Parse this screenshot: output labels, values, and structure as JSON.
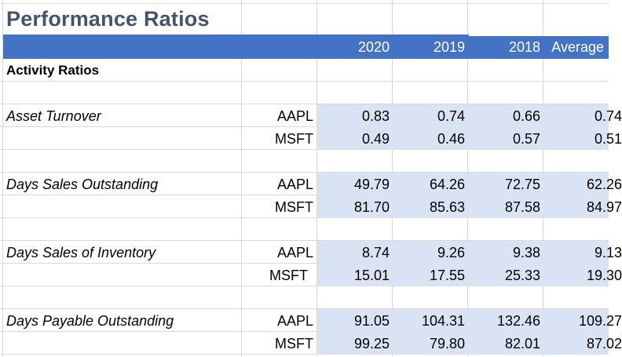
{
  "sheet": {
    "title": "Performance Ratios",
    "header": {
      "years": [
        "2020",
        "2019",
        "2018"
      ],
      "average_label": "Average"
    },
    "section_title": "Activity Ratios",
    "metrics": [
      {
        "label": "Asset Turnover",
        "rows": [
          {
            "ticker": "AAPL",
            "v2020": "0.83",
            "v2019": "0.74",
            "v2018": "0.66",
            "avg": "0.74"
          },
          {
            "ticker": "MSFT",
            "v2020": "0.49",
            "v2019": "0.46",
            "v2018": "0.57",
            "avg": "0.51"
          }
        ]
      },
      {
        "label": "Days Sales Outstanding",
        "rows": [
          {
            "ticker": "AAPL",
            "v2020": "49.79",
            "v2019": "64.26",
            "v2018": "72.75",
            "avg": "62.26"
          },
          {
            "ticker": "MSFT",
            "v2020": "81.70",
            "v2019": "85.63",
            "v2018": "87.58",
            "avg": "84.97"
          }
        ]
      },
      {
        "label": "Days Sales of Inventory",
        "rows": [
          {
            "ticker": "AAPL",
            "v2020": "8.74",
            "v2019": "9.26",
            "v2018": "9.38",
            "avg": "9.13"
          },
          {
            "ticker": "MSFT",
            "v2020": "15.01",
            "v2019": "17.55",
            "v2018": "25.33",
            "avg": "19.30"
          }
        ]
      },
      {
        "label": "Days Payable Outstanding",
        "rows": [
          {
            "ticker": "AAPL",
            "v2020": "91.05",
            "v2019": "104.31",
            "v2018": "132.46",
            "avg": "109.27"
          },
          {
            "ticker": "MSFT",
            "v2020": "99.25",
            "v2019": "79.80",
            "v2018": "82.01",
            "avg": "87.02"
          }
        ]
      }
    ],
    "colors": {
      "header_band": "#4472c4",
      "title_text": "#44546a",
      "value_band": "#dae3f3",
      "gridline": "#d9d9d9"
    }
  }
}
